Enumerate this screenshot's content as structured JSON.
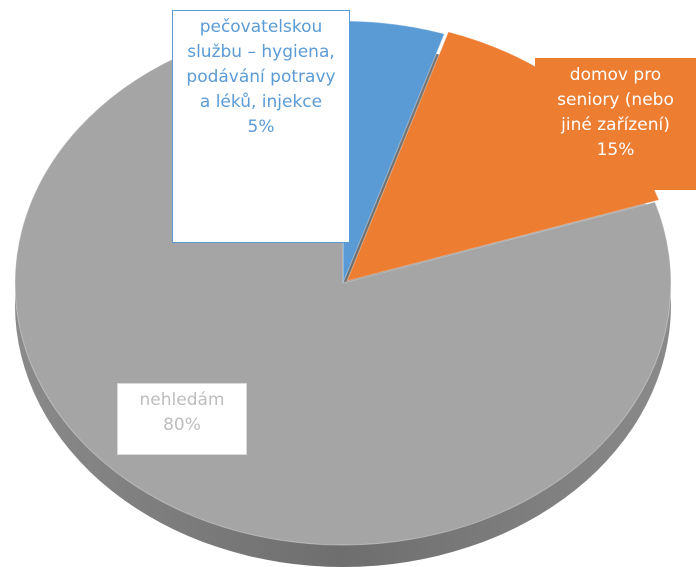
{
  "chart_data": {
    "type": "pie",
    "categories": [
      "pečovatelskou službu – hygiena, podávání potravy a léků, injekce",
      "domov pro seniory (nebo jiné zařízení)",
      "nehledám"
    ],
    "values": [
      5,
      15,
      80
    ],
    "value_labels": [
      "5%",
      "15%",
      "80%"
    ],
    "colors": [
      "#5b9bd5",
      "#ed7d31",
      "#a5a5a5"
    ]
  }
}
